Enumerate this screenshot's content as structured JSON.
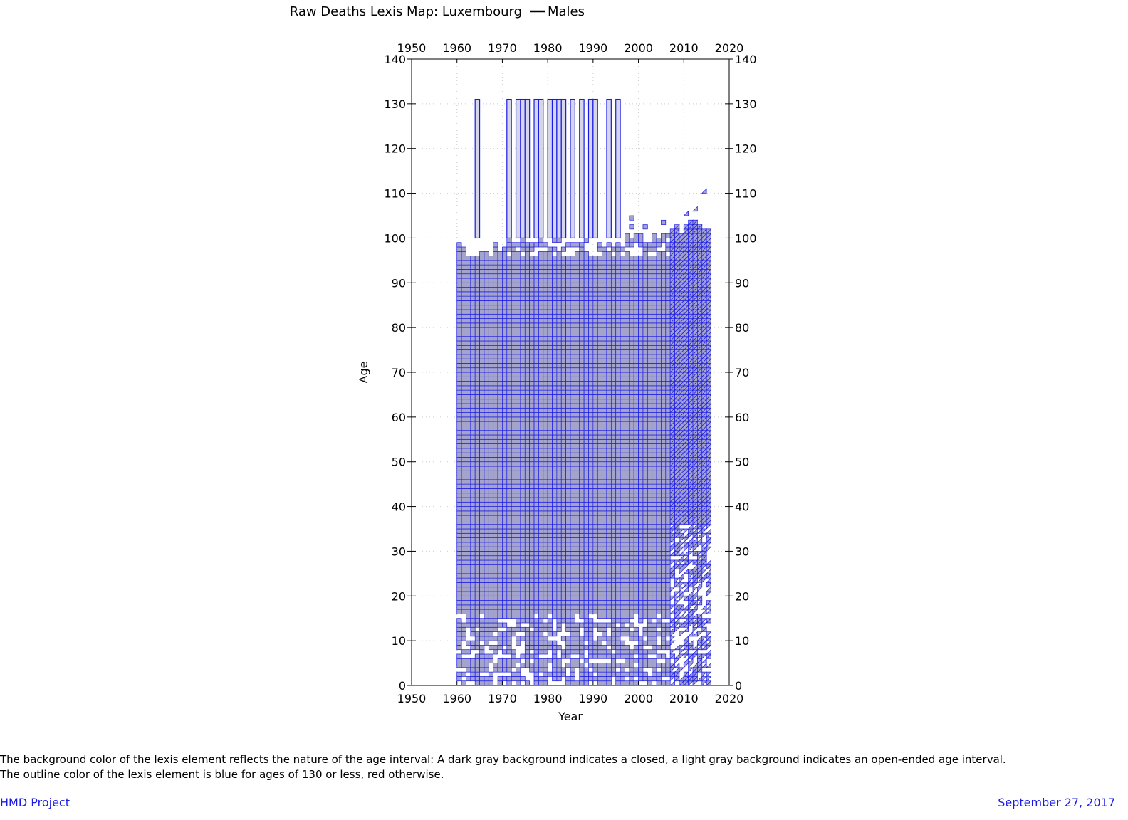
{
  "chart_data": {
    "type": "heatmap",
    "title": "Raw Deaths Lexis Map: Luxembourg",
    "legend_label": "Males",
    "xlabel": "Year",
    "ylabel": "Age",
    "xlim": [
      1950,
      2020
    ],
    "ylim": [
      0,
      140
    ],
    "x_ticks": [
      1950,
      1960,
      1970,
      1980,
      1990,
      2000,
      2010,
      2020
    ],
    "y_ticks": [
      0,
      10,
      20,
      30,
      40,
      50,
      60,
      70,
      80,
      90,
      100,
      110,
      120,
      130,
      140
    ],
    "grid": true,
    "square_years": [
      1960,
      2006
    ],
    "triangle_years": [
      2007,
      2015
    ],
    "main_block_age_top": 96,
    "top_edge_by_year": [
      [
        1960,
        99
      ],
      [
        1961,
        98
      ],
      [
        1962,
        96
      ],
      [
        1963,
        96
      ],
      [
        1964,
        97
      ],
      [
        1965,
        97
      ],
      [
        1966,
        98
      ],
      [
        1967,
        99
      ],
      [
        1968,
        99
      ],
      [
        1969,
        98
      ],
      [
        1970,
        98
      ],
      [
        1971,
        100
      ],
      [
        1972,
        100
      ],
      [
        1973,
        99
      ],
      [
        1974,
        100
      ],
      [
        1975,
        100
      ],
      [
        1976,
        100
      ],
      [
        1977,
        99
      ],
      [
        1978,
        100
      ],
      [
        1979,
        99
      ],
      [
        1980,
        98
      ],
      [
        1981,
        100
      ],
      [
        1982,
        100
      ],
      [
        1983,
        100
      ],
      [
        1984,
        99
      ],
      [
        1985,
        100
      ],
      [
        1986,
        99
      ],
      [
        1987,
        99
      ],
      [
        1988,
        100
      ],
      [
        1989,
        99
      ],
      [
        1990,
        99
      ],
      [
        1991,
        99
      ],
      [
        1992,
        99
      ],
      [
        1993,
        99
      ],
      [
        1994,
        99
      ],
      [
        1995,
        101
      ],
      [
        1996,
        101
      ],
      [
        1997,
        101
      ],
      [
        1998,
        100
      ],
      [
        1999,
        101
      ],
      [
        2000,
        101
      ],
      [
        2001,
        101
      ],
      [
        2002,
        101
      ],
      [
        2003,
        101
      ],
      [
        2004,
        100
      ],
      [
        2005,
        101
      ],
      [
        2006,
        101
      ],
      [
        2007,
        102
      ],
      [
        2008,
        103
      ],
      [
        2009,
        101
      ],
      [
        2010,
        103
      ],
      [
        2011,
        104
      ],
      [
        2012,
        104
      ],
      [
        2013,
        103
      ],
      [
        2014,
        102
      ],
      [
        2015,
        102
      ]
    ],
    "outlier_cells": [
      {
        "year": 1998,
        "age": 104
      },
      {
        "year": 1998,
        "age": 102
      },
      {
        "year": 2001,
        "age": 102
      },
      {
        "year": 2005,
        "age": 103
      },
      {
        "year": 2010,
        "age": 105
      },
      {
        "year": 2012,
        "age": 106
      },
      {
        "year": 2014,
        "age": 110
      }
    ],
    "open_intervals": [
      {
        "year": 1964,
        "age_from": 100,
        "age_to": 131
      },
      {
        "year": 1971,
        "age_from": 100,
        "age_to": 131
      },
      {
        "year": 1973,
        "age_from": 100,
        "age_to": 131
      },
      {
        "year": 1974,
        "age_from": 100,
        "age_to": 131
      },
      {
        "year": 1975,
        "age_from": 100,
        "age_to": 131
      },
      {
        "year": 1977,
        "age_from": 100,
        "age_to": 131
      },
      {
        "year": 1978,
        "age_from": 100,
        "age_to": 131
      },
      {
        "year": 1980,
        "age_from": 100,
        "age_to": 131
      },
      {
        "year": 1981,
        "age_from": 100,
        "age_to": 131
      },
      {
        "year": 1982,
        "age_from": 100,
        "age_to": 131
      },
      {
        "year": 1983,
        "age_from": 100,
        "age_to": 131
      },
      {
        "year": 1985,
        "age_from": 100,
        "age_to": 131
      },
      {
        "year": 1987,
        "age_from": 100,
        "age_to": 131
      },
      {
        "year": 1989,
        "age_from": 100,
        "age_to": 131
      },
      {
        "year": 1990,
        "age_from": 100,
        "age_to": 131
      },
      {
        "year": 1993,
        "age_from": 100,
        "age_to": 131
      },
      {
        "year": 1995,
        "age_from": 100,
        "age_to": 131
      }
    ],
    "sparse_young_band": {
      "age_from": 0,
      "age_to": 16,
      "fill_ratio": 0.7
    },
    "sparse_triangle_band": {
      "age_from": 0,
      "age_to": 36,
      "fill_ratio": 0.55
    },
    "colors": {
      "closed_interval": "#a3a3cc",
      "open_interval": "#d6d6ea",
      "outline": "#1a1ae6",
      "grid": "#cccccc"
    }
  },
  "footnote": {
    "line1": "The background color of the lexis element reflects the nature of the age interval: A dark gray background indicates a closed, a light gray background indicates an open-ended age interval.",
    "line2": "The outline color of the lexis element is blue for ages of 130 or less, red otherwise."
  },
  "footer": {
    "left": "HMD Project",
    "right": "September 27, 2017"
  }
}
